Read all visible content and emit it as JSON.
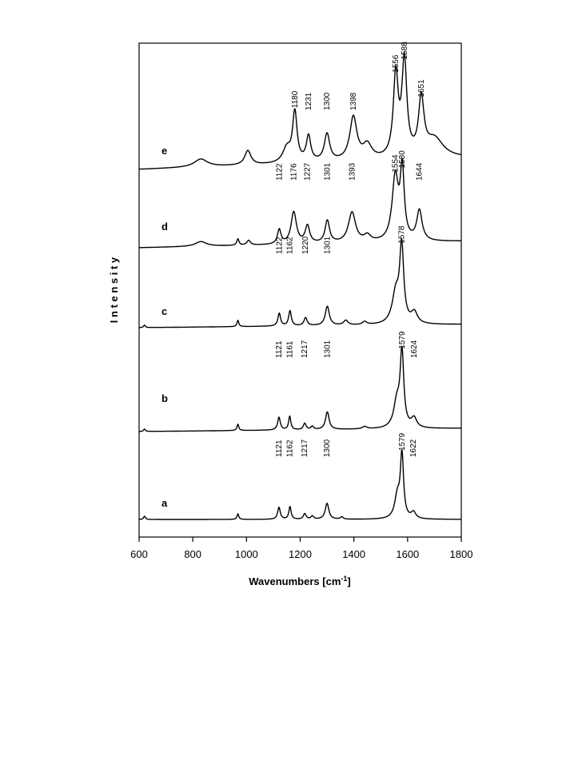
{
  "chart_data": {
    "type": "line",
    "title": "",
    "xlabel": "Wavenumbers [cm",
    "xlabel_sup": "-1",
    "xlabel_suffix": "]",
    "ylabel": "I n t e n s i t y",
    "xlim": [
      600,
      1800
    ],
    "x_ticks": [
      600,
      800,
      1000,
      1200,
      1400,
      1600,
      1800
    ],
    "x_tick_labels": [
      "600",
      "800",
      "1000",
      "1200",
      "1400",
      "1600",
      "1800"
    ],
    "y_tick_labels": [],
    "grid": false,
    "legend": "none",
    "series": [
      {
        "label": "a",
        "peaks": [
          {
            "x": 620,
            "h": 4,
            "w": 4
          },
          {
            "x": 968,
            "h": 7,
            "w": 4
          },
          {
            "x": 1121,
            "h": 15,
            "w": 6
          },
          {
            "x": 1162,
            "h": 16,
            "w": 5
          },
          {
            "x": 1217,
            "h": 7,
            "w": 6
          },
          {
            "x": 1245,
            "h": 4,
            "w": 6
          },
          {
            "x": 1300,
            "h": 20,
            "w": 8
          },
          {
            "x": 1355,
            "h": 3,
            "w": 6
          },
          {
            "x": 1579,
            "h": 78,
            "w": 7
          },
          {
            "x": 1562,
            "h": 28,
            "w": 12
          },
          {
            "x": 1622,
            "h": 8,
            "w": 10
          }
        ],
        "annotations": [
          {
            "x": 1121,
            "text": "1121"
          },
          {
            "x": 1162,
            "text": "1162"
          },
          {
            "x": 1217,
            "text": "1217"
          },
          {
            "x": 1300,
            "text": "1300"
          },
          {
            "x": 1579,
            "text": "1579"
          },
          {
            "x": 1622,
            "text": "1622"
          }
        ]
      },
      {
        "label": "b",
        "peaks": [
          {
            "x": 620,
            "h": 3,
            "w": 4
          },
          {
            "x": 968,
            "h": 8,
            "w": 4
          },
          {
            "x": 1121,
            "h": 16,
            "w": 6
          },
          {
            "x": 1161,
            "h": 17,
            "w": 5
          },
          {
            "x": 1217,
            "h": 8,
            "w": 6
          },
          {
            "x": 1245,
            "h": 4,
            "w": 6
          },
          {
            "x": 1301,
            "h": 22,
            "w": 8
          },
          {
            "x": 1440,
            "h": 3,
            "w": 10
          },
          {
            "x": 1579,
            "h": 92,
            "w": 8
          },
          {
            "x": 1560,
            "h": 32,
            "w": 14
          },
          {
            "x": 1624,
            "h": 12,
            "w": 12
          }
        ],
        "annotations": [
          {
            "x": 1121,
            "text": "1121"
          },
          {
            "x": 1161,
            "text": "1161"
          },
          {
            "x": 1217,
            "text": "1217"
          },
          {
            "x": 1301,
            "text": "1301"
          },
          {
            "x": 1579,
            "text": "1579"
          },
          {
            "x": 1624,
            "text": "1624"
          }
        ]
      },
      {
        "label": "c",
        "peaks": [
          {
            "x": 620,
            "h": 3,
            "w": 4
          },
          {
            "x": 968,
            "h": 8,
            "w": 4
          },
          {
            "x": 1122,
            "h": 16,
            "w": 6
          },
          {
            "x": 1162,
            "h": 19,
            "w": 6
          },
          {
            "x": 1220,
            "h": 10,
            "w": 7
          },
          {
            "x": 1301,
            "h": 24,
            "w": 9
          },
          {
            "x": 1370,
            "h": 6,
            "w": 10
          },
          {
            "x": 1440,
            "h": 4,
            "w": 10
          },
          {
            "x": 1578,
            "h": 94,
            "w": 9
          },
          {
            "x": 1556,
            "h": 38,
            "w": 16
          },
          {
            "x": 1625,
            "h": 14,
            "w": 14
          }
        ],
        "annotations": [
          {
            "x": 1122,
            "text": "1122"
          },
          {
            "x": 1162,
            "text": "1162"
          },
          {
            "x": 1220,
            "text": "1220"
          },
          {
            "x": 1301,
            "text": "1301"
          },
          {
            "x": 1578,
            "text": "1578"
          }
        ]
      },
      {
        "label": "d",
        "peaks": [
          {
            "x": 830,
            "h": 6,
            "w": 25
          },
          {
            "x": 968,
            "h": 8,
            "w": 5
          },
          {
            "x": 1008,
            "h": 6,
            "w": 8
          },
          {
            "x": 1122,
            "h": 18,
            "w": 8
          },
          {
            "x": 1176,
            "h": 40,
            "w": 12
          },
          {
            "x": 1227,
            "h": 22,
            "w": 10
          },
          {
            "x": 1301,
            "h": 28,
            "w": 10
          },
          {
            "x": 1393,
            "h": 38,
            "w": 16
          },
          {
            "x": 1450,
            "h": 8,
            "w": 15
          },
          {
            "x": 1554,
            "h": 80,
            "w": 14
          },
          {
            "x": 1580,
            "h": 85,
            "w": 9
          },
          {
            "x": 1644,
            "h": 38,
            "w": 12
          }
        ],
        "annotations": [
          {
            "x": 1122,
            "text": "1122"
          },
          {
            "x": 1176,
            "text": "1176"
          },
          {
            "x": 1227,
            "text": "1227"
          },
          {
            "x": 1301,
            "text": "1301"
          },
          {
            "x": 1393,
            "text": "1393"
          },
          {
            "x": 1554,
            "text": "1554"
          },
          {
            "x": 1580,
            "text": "1580"
          },
          {
            "x": 1644,
            "text": "1644"
          }
        ]
      },
      {
        "label": "e",
        "peaks": [
          {
            "x": 830,
            "h": 10,
            "w": 30
          },
          {
            "x": 1005,
            "h": 18,
            "w": 14
          },
          {
            "x": 1180,
            "h": 62,
            "w": 10
          },
          {
            "x": 1150,
            "h": 18,
            "w": 18
          },
          {
            "x": 1231,
            "h": 32,
            "w": 10
          },
          {
            "x": 1300,
            "h": 34,
            "w": 12
          },
          {
            "x": 1398,
            "h": 54,
            "w": 16
          },
          {
            "x": 1450,
            "h": 18,
            "w": 20
          },
          {
            "x": 1556,
            "h": 102,
            "w": 11
          },
          {
            "x": 1588,
            "h": 118,
            "w": 11
          },
          {
            "x": 1651,
            "h": 70,
            "w": 12
          },
          {
            "x": 1700,
            "h": 24,
            "w": 40
          }
        ],
        "annotations": [
          {
            "x": 1180,
            "text": "1180"
          },
          {
            "x": 1231,
            "text": "1231"
          },
          {
            "x": 1300,
            "text": "1300"
          },
          {
            "x": 1398,
            "text": "1398"
          },
          {
            "x": 1556,
            "text": "1556"
          },
          {
            "x": 1588,
            "text": "1588"
          },
          {
            "x": 1651,
            "text": "1651"
          }
        ]
      }
    ]
  }
}
